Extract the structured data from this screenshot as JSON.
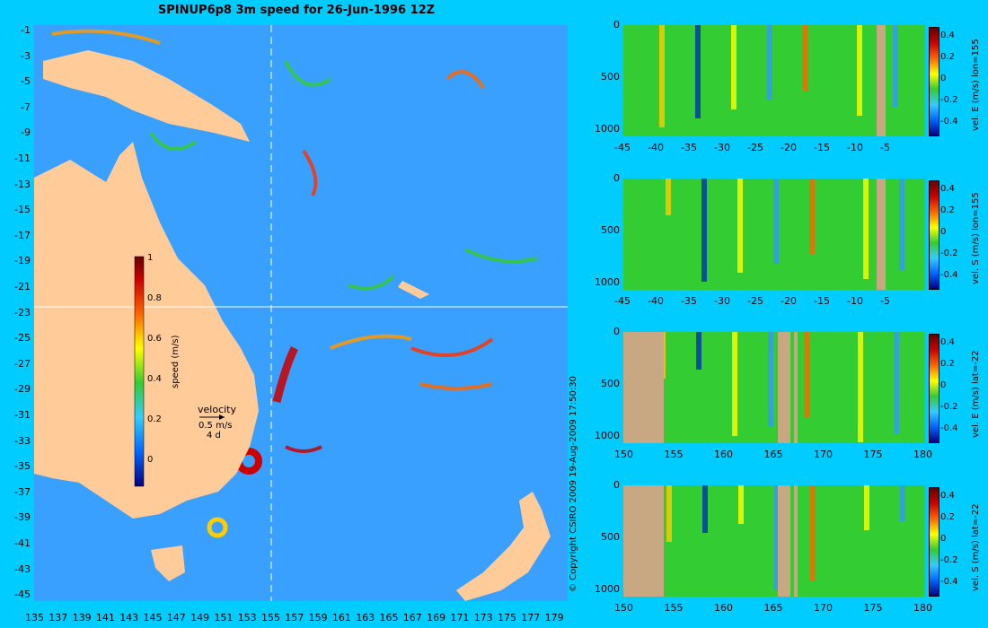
{
  "title": "SPINUP6p8 3m speed for 26-Jun-1996 12Z",
  "copyright": "© Copyright CSIRO 2009   19-Aug-2009 17:50:30",
  "map": {
    "lon_ticks": [
      "135",
      "137",
      "139",
      "141",
      "143",
      "145",
      "147",
      "149",
      "151",
      "153",
      "155",
      "157",
      "159",
      "161",
      "163",
      "165",
      "167",
      "169",
      "171",
      "173",
      "175",
      "177",
      "179"
    ],
    "lat_ticks": [
      "-1",
      "-3",
      "-5",
      "-7",
      "-9",
      "-11",
      "-13",
      "-15",
      "-17",
      "-19",
      "-21",
      "-23",
      "-25",
      "-27",
      "-29",
      "-31",
      "-33",
      "-35",
      "-37",
      "-39",
      "-41",
      "-43",
      "-45"
    ],
    "colorbar": {
      "label": "speed (m/s)",
      "ticks": [
        "1",
        "0.8",
        "0.6",
        "0.4",
        "0.2",
        "0"
      ]
    },
    "velocity_key": {
      "title": "velocity",
      "speed": "0.5 m/s",
      "duration": "4 d"
    },
    "colors": {
      "ocean": "#3aa0ff",
      "land": "#ffcc99",
      "fast": "#ff3300",
      "mid": "#33cc33"
    }
  },
  "panels": [
    {
      "ylabel": "vel. E (m/s) lon=155",
      "xticks": [
        "-45",
        "-40",
        "-35",
        "-30",
        "-25",
        "-20",
        "-15",
        "-10",
        "-5"
      ],
      "yticks": [
        "0",
        "500",
        "1000"
      ],
      "cticks": [
        "0.4",
        "0.2",
        "0",
        "-0.2",
        "-0.4"
      ]
    },
    {
      "ylabel": "vel. S (m/s) lon=155",
      "xticks": [
        "-45",
        "-40",
        "-35",
        "-30",
        "-25",
        "-20",
        "-15",
        "-10",
        "-5"
      ],
      "yticks": [
        "0",
        "500",
        "1000"
      ],
      "cticks": [
        "0.4",
        "0.2",
        "0",
        "-0.2",
        "-0.4"
      ]
    },
    {
      "ylabel": "vel. E (m/s) lat=-22",
      "xticks": [
        "150",
        "155",
        "160",
        "165",
        "170",
        "175",
        "180"
      ],
      "yticks": [
        "0",
        "500",
        "1000"
      ],
      "cticks": [
        "0.4",
        "0.2",
        "0",
        "-0.2",
        "-0.4"
      ]
    },
    {
      "ylabel": "vel. S (m/s) lat=-22",
      "xticks": [
        "150",
        "155",
        "160",
        "165",
        "170",
        "175",
        "180"
      ],
      "yticks": [
        "0",
        "500",
        "1000"
      ],
      "cticks": [
        "0.4",
        "0.2",
        "0",
        "-0.2",
        "-0.4"
      ]
    }
  ]
}
